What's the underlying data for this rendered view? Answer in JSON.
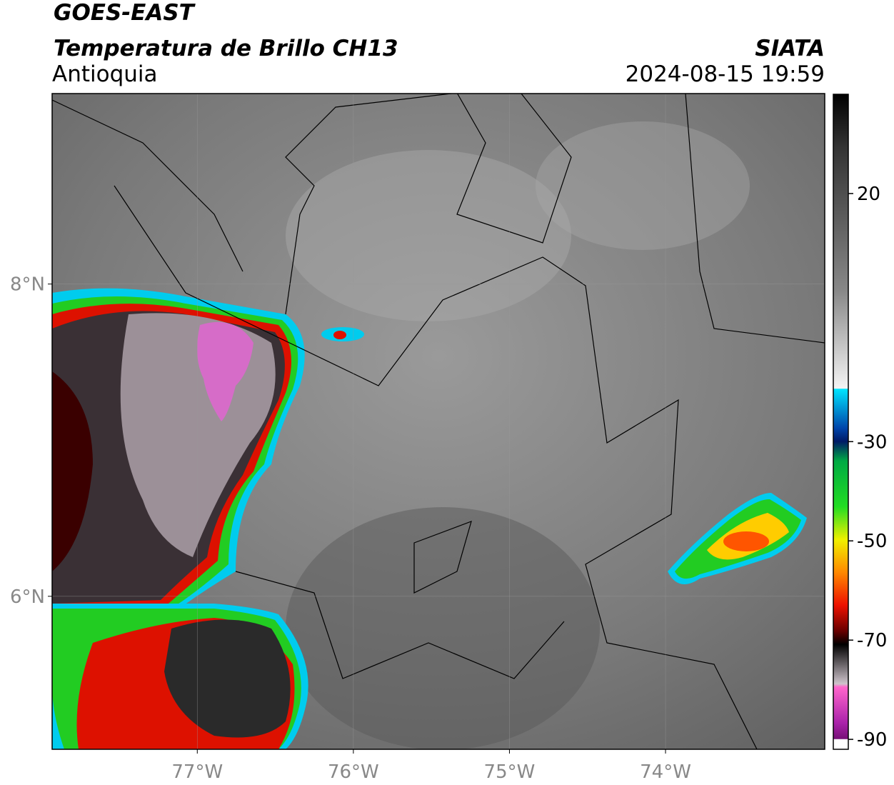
{
  "header": {
    "title": "GOES-EAST",
    "subtitle": "Temperatura de Brillo CH13",
    "region": "Antioquia",
    "source": "SIATA",
    "datetime": "2024-08-15 19:59"
  },
  "map": {
    "xlim": [
      -77.93,
      -72.98
    ],
    "ylim": [
      5.02,
      9.22
    ],
    "xticks": [
      {
        "value": -77,
        "label": "77°W"
      },
      {
        "value": -76,
        "label": "76°W"
      },
      {
        "value": -75,
        "label": "75°W"
      },
      {
        "value": -74,
        "label": "74°W"
      }
    ],
    "yticks": [
      {
        "value": 8,
        "label": "8°N"
      },
      {
        "value": 6,
        "label": "6°N"
      }
    ]
  },
  "colorbar": {
    "lim": [
      -92,
      40
    ],
    "ticks": [
      20,
      -30,
      -50,
      -70,
      -90
    ]
  }
}
